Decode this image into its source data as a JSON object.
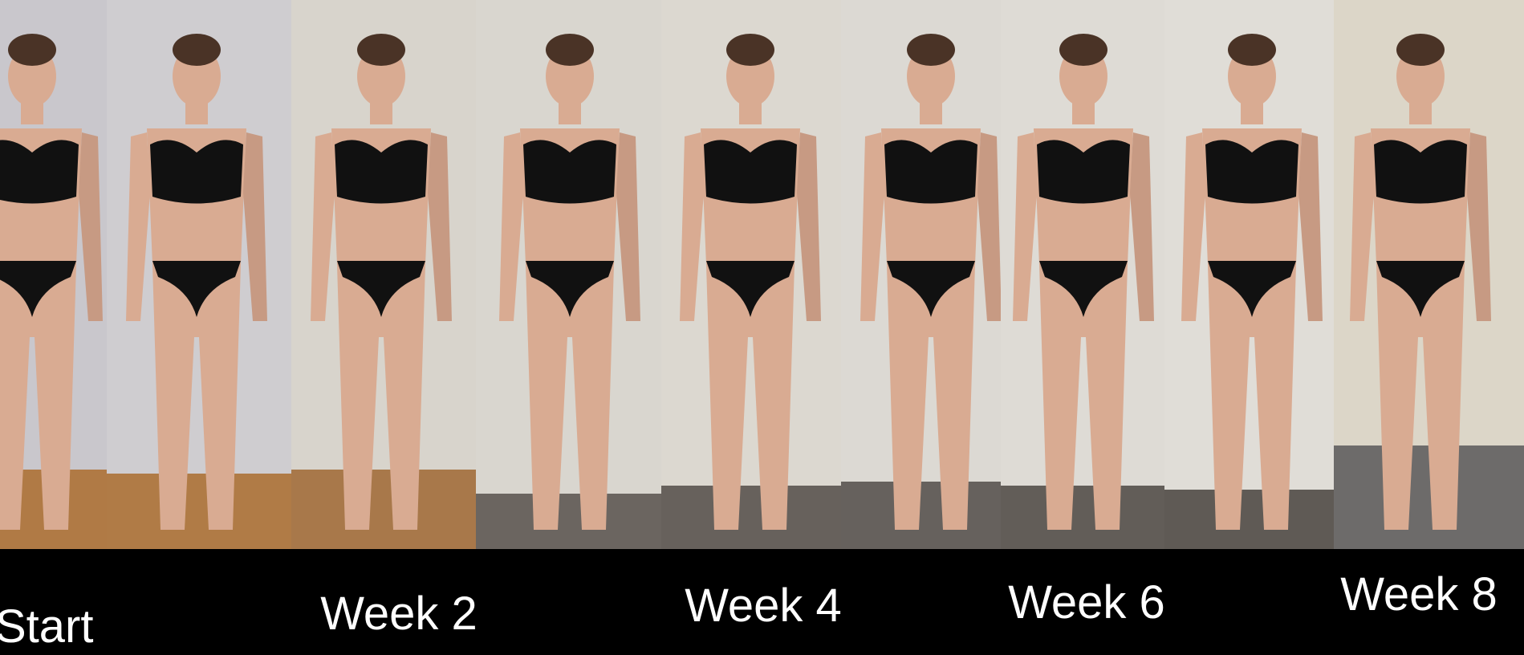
{
  "captions": [
    "Start",
    "Week 2",
    "Week 4",
    "Week 6",
    "Week 8"
  ]
}
